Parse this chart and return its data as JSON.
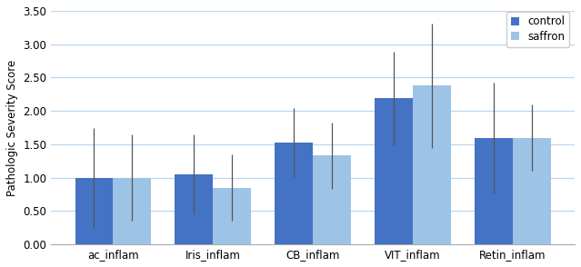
{
  "categories": [
    "ac_inflam",
    "Iris_inflam",
    "CB_inflam",
    "VIT_inflam",
    "Retin_inflam"
  ],
  "control_values": [
    1.0,
    1.05,
    1.53,
    2.19,
    1.6
  ],
  "saffron_values": [
    1.0,
    0.85,
    1.33,
    2.38,
    1.6
  ],
  "control_errors": [
    0.75,
    0.6,
    0.52,
    0.7,
    0.83
  ],
  "saffron_errors": [
    0.65,
    0.5,
    0.5,
    0.93,
    0.5
  ],
  "control_color": "#4472C4",
  "saffron_color": "#9DC3E6",
  "ylabel": "Pathologic Severity Score",
  "ylim": [
    0,
    3.5
  ],
  "yticks": [
    0.0,
    0.5,
    1.0,
    1.5,
    2.0,
    2.5,
    3.0,
    3.5
  ],
  "legend_labels": [
    "control",
    "saffron"
  ],
  "bar_width": 0.38,
  "background_color": "#ffffff",
  "grid_color": "#BDD7EE"
}
